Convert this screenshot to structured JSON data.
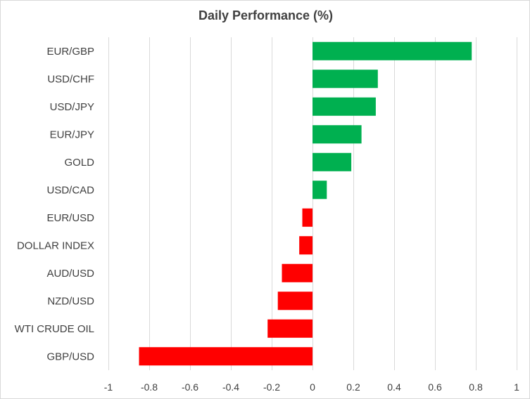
{
  "chart_data": {
    "type": "bar",
    "orientation": "horizontal",
    "title": "Daily Performance (%)",
    "categories": [
      "EUR/GBP",
      "USD/CHF",
      "USD/JPY",
      "EUR/JPY",
      "GOLD",
      "USD/CAD",
      "EUR/USD",
      "DOLLAR INDEX",
      "AUD/USD",
      "NZD/USD",
      "WTI CRUDE OIL",
      "GBP/USD"
    ],
    "values": [
      0.78,
      0.32,
      0.31,
      0.24,
      0.19,
      0.07,
      -0.05,
      -0.065,
      -0.15,
      -0.17,
      -0.22,
      -0.85
    ],
    "xlim": [
      -1,
      1
    ],
    "x_ticks": [
      -1,
      -0.8,
      -0.6,
      -0.4,
      -0.2,
      0,
      0.2,
      0.4,
      0.6,
      0.8,
      1
    ],
    "x_tick_labels": [
      "-1",
      "-0.8",
      "-0.6",
      "-0.4",
      "-0.2",
      "0",
      "0.2",
      "0.4",
      "0.6",
      "0.8",
      "1"
    ],
    "xlabel": "",
    "ylabel": "",
    "grid": "vertical",
    "legend": "none",
    "colors": {
      "positive": "#00b050",
      "negative": "#ff0000",
      "grid": "#d9d9d9",
      "text": "#404040"
    }
  }
}
